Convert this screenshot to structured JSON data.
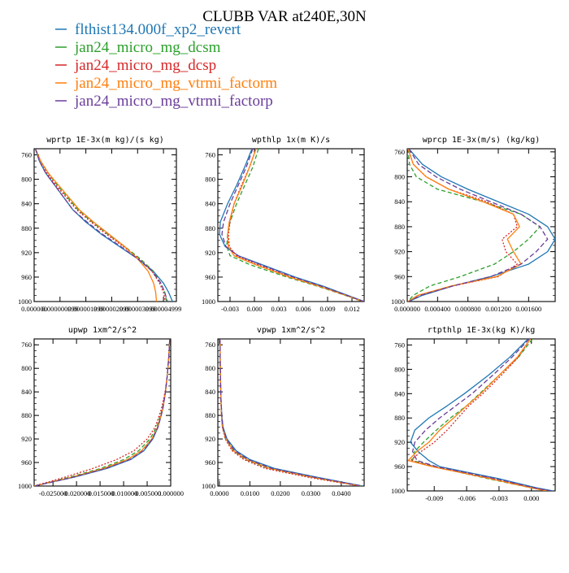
{
  "figure": {
    "title": "CLUBB VAR at240E,30N",
    "legend": [
      {
        "label": "flthist134.000f_xp2_revert",
        "color": "#1f77b4"
      },
      {
        "label": "jan24_micro_mg_dcsm",
        "color": "#2ca02c"
      },
      {
        "label": "jan24_micro_mg_dcsp",
        "color": "#d62728"
      },
      {
        "label": "jan24_micro_mg_vtrmi_factorm",
        "color": "#ff7f0e"
      },
      {
        "label": "jan24_micro_mg_vtrmi_factorp",
        "color": "#6a3d9a"
      }
    ]
  },
  "chart_data": [
    {
      "type": "line",
      "title": "wprtp  1E-3x(m kg)/(s kg)",
      "xlim": [
        0,
        5.5e-06
      ],
      "ylim": [
        1000,
        750
      ],
      "xticks": [
        0,
        1e-06,
        2e-06,
        3e-06,
        4e-06,
        5e-06
      ],
      "xtick_labels": [
        "0.000000",
        "0.000000999",
        "0.000001999",
        "0.000002999",
        "0.000003999",
        "0.000004999"
      ],
      "yticks": [
        760,
        800,
        840,
        880,
        920,
        960,
        1000
      ],
      "pressure": [
        750,
        770,
        790,
        810,
        830,
        850,
        870,
        890,
        910,
        930,
        950,
        970,
        985,
        995,
        1000
      ],
      "series": [
        {
          "name": "flthist134.000f_xp2_revert",
          "color": "#1f77b4",
          "dash": "",
          "x": [
            5e-08,
            2e-07,
            4.5e-07,
            8e-07,
            1.15e-06,
            1.5e-06,
            2e-06,
            2.6e-06,
            3.3e-06,
            4e-06,
            4.6e-06,
            5e-06,
            5.2e-06,
            5.3e-06,
            5.35e-06
          ]
        },
        {
          "name": "jan24_micro_mg_dcsm",
          "color": "#2ca02c",
          "dash": "5,3",
          "x": [
            5e-08,
            2.5e-07,
            5.5e-07,
            9e-07,
            1.3e-06,
            1.7e-06,
            2.25e-06,
            2.85e-06,
            3.5e-06,
            4.1e-06,
            4.6e-06,
            4.9e-06,
            5.05e-06,
            5.1e-06,
            5.12e-06
          ]
        },
        {
          "name": "jan24_micro_mg_dcsp",
          "color": "#d62728",
          "dash": "2,2",
          "x": [
            5e-08,
            2.5e-07,
            5e-07,
            8.5e-07,
            1.25e-06,
            1.65e-06,
            2.2e-06,
            2.8e-06,
            3.45e-06,
            4.05e-06,
            4.55e-06,
            4.85e-06,
            5e-06,
            5.05e-06,
            5.07e-06
          ]
        },
        {
          "name": "jan24_micro_mg_vtrmi_factorm",
          "color": "#ff7f0e",
          "dash": "",
          "x": [
            5e-08,
            2.5e-07,
            5.5e-07,
            9.5e-07,
            1.35e-06,
            1.75e-06,
            2.3e-06,
            2.9e-06,
            3.5e-06,
            4e-06,
            4.4e-06,
            4.62e-06,
            4.7e-06,
            4.72e-06,
            4.73e-06
          ]
        },
        {
          "name": "jan24_micro_mg_vtrmi_factorp",
          "color": "#6a3d9a",
          "dash": "6,3",
          "x": [
            5e-08,
            2e-07,
            4.5e-07,
            8e-07,
            1.15e-06,
            1.5e-06,
            2.05e-06,
            2.65e-06,
            3.35e-06,
            4e-06,
            4.55e-06,
            4.9e-06,
            5.05e-06,
            5.12e-06,
            5.15e-06
          ]
        }
      ]
    },
    {
      "type": "line",
      "title": "wpthlp  1x(m K)/s",
      "xlim": [
        -0.0045,
        0.0135
      ],
      "ylim": [
        1000,
        750
      ],
      "xticks": [
        -0.003,
        0.0,
        0.003,
        0.006,
        0.009,
        0.012
      ],
      "xtick_labels": [
        "-0.003",
        "0.000",
        "0.003",
        "0.006",
        "0.009",
        "0.012"
      ],
      "yticks": [
        760,
        800,
        840,
        880,
        920,
        960,
        1000
      ],
      "pressure": [
        750,
        780,
        810,
        840,
        870,
        890,
        910,
        925,
        940,
        960,
        975,
        990,
        1000
      ],
      "series": [
        {
          "name": "flthist134.000f_xp2_revert",
          "color": "#1f77b4",
          "dash": "",
          "x": [
            -0.0003,
            -0.0012,
            -0.0022,
            -0.0033,
            -0.0042,
            -0.0043,
            -0.0036,
            -0.002,
            0.001,
            0.005,
            0.0085,
            0.0115,
            0.0135
          ]
        },
        {
          "name": "jan24_micro_mg_dcsm",
          "color": "#2ca02c",
          "dash": "5,3",
          "x": [
            0.0005,
            -0.0002,
            -0.0012,
            -0.0022,
            -0.003,
            -0.0033,
            -0.0034,
            -0.003,
            -0.0005,
            0.004,
            0.0078,
            0.0112,
            0.0133
          ]
        },
        {
          "name": "jan24_micro_mg_dcsp",
          "color": "#d62728",
          "dash": "2,2",
          "x": [
            0.0002,
            -0.0006,
            -0.0016,
            -0.0025,
            -0.003,
            -0.0032,
            -0.0031,
            -0.0022,
            0.0005,
            0.0045,
            0.008,
            0.0113,
            0.0134
          ]
        },
        {
          "name": "jan24_micro_mg_vtrmi_factorm",
          "color": "#ff7f0e",
          "dash": "",
          "x": [
            0.0002,
            -0.0006,
            -0.0015,
            -0.0025,
            -0.0031,
            -0.0033,
            -0.0032,
            -0.0025,
            0.0002,
            0.0043,
            0.008,
            0.0113,
            0.0134
          ]
        },
        {
          "name": "jan24_micro_mg_vtrmi_factorp",
          "color": "#6a3d9a",
          "dash": "6,3",
          "x": [
            -0.0002,
            -0.001,
            -0.002,
            -0.003,
            -0.0038,
            -0.004,
            -0.0035,
            -0.002,
            0.0008,
            0.0048,
            0.0083,
            0.0114,
            0.0135
          ]
        }
      ]
    },
    {
      "type": "line",
      "title": "wprcp  1E-3x(m/s) (kg/kg)",
      "xlim": [
        0,
        0.00195
      ],
      "ylim": [
        1000,
        755
      ],
      "xticks": [
        0,
        0.0004,
        0.0008,
        0.0012,
        0.0016
      ],
      "xtick_labels": [
        "0.000000",
        "0.000400",
        "0.000800",
        "0.001200",
        "0.001600"
      ],
      "yticks": [
        760,
        800,
        840,
        880,
        920,
        960,
        1000
      ],
      "pressure": [
        755,
        780,
        800,
        820,
        840,
        860,
        880,
        900,
        920,
        940,
        960,
        975,
        990,
        1000
      ],
      "series": [
        {
          "name": "flthist134.000f_xp2_revert",
          "color": "#1f77b4",
          "dash": "",
          "x": [
            2e-05,
            0.0002,
            0.00045,
            0.0008,
            0.0012,
            0.0016,
            0.00185,
            0.00195,
            0.00185,
            0.0016,
            0.0011,
            0.0006,
            0.0002,
            2e-05
          ]
        },
        {
          "name": "jan24_micro_mg_dcsm",
          "color": "#2ca02c",
          "dash": "5,3",
          "x": [
            1e-05,
            3e-05,
            0.00012,
            0.0004,
            0.001,
            0.0015,
            0.00175,
            0.0016,
            0.0014,
            0.00115,
            0.0007,
            0.0003,
            8e-05,
            1e-05
          ]
        },
        {
          "name": "jan24_micro_mg_dcsp",
          "color": "#d62728",
          "dash": "2,2",
          "x": [
            1e-05,
            8e-05,
            0.00025,
            0.00055,
            0.00105,
            0.0014,
            0.00145,
            0.00125,
            0.0013,
            0.00145,
            0.0012,
            0.0006,
            0.00015,
            1e-05
          ]
        },
        {
          "name": "jan24_micro_mg_vtrmi_factorm",
          "color": "#ff7f0e",
          "dash": "",
          "x": [
            1e-05,
            8e-05,
            0.00025,
            0.00055,
            0.001,
            0.0014,
            0.00148,
            0.00132,
            0.0014,
            0.0015,
            0.00118,
            0.00058,
            0.00014,
            1e-05
          ]
        },
        {
          "name": "jan24_micro_mg_vtrmi_factorp",
          "color": "#6a3d9a",
          "dash": "6,3",
          "x": [
            2e-05,
            0.00015,
            0.00038,
            0.0007,
            0.0011,
            0.0015,
            0.00175,
            0.00185,
            0.0017,
            0.0015,
            0.0011,
            0.0006,
            0.00018,
            2e-05
          ]
        }
      ]
    },
    {
      "type": "line",
      "title": "upwp  1xm^2/s^2",
      "xlim": [
        -0.029,
        0.0
      ],
      "ylim": [
        1000,
        750
      ],
      "xticks": [
        -0.025,
        -0.02,
        -0.015,
        -0.01,
        -0.005,
        0.0
      ],
      "xtick_labels": [
        "-0.025000",
        "-0.020000",
        "-0.015000",
        "-0.010000",
        "-0.005000",
        "0.000000"
      ],
      "yticks": [
        760,
        800,
        840,
        880,
        920,
        960,
        1000
      ],
      "pressure": [
        750,
        780,
        810,
        840,
        870,
        900,
        920,
        940,
        955,
        970,
        985,
        1000
      ],
      "series": [
        {
          "name": "flthist134.000f_xp2_revert",
          "color": "#1f77b4",
          "dash": "",
          "x": [
            -0.0002,
            -0.0004,
            -0.0007,
            -0.0011,
            -0.0017,
            -0.0027,
            -0.0038,
            -0.0057,
            -0.0085,
            -0.0135,
            -0.0205,
            -0.029
          ]
        },
        {
          "name": "jan24_micro_mg_dcsm",
          "color": "#2ca02c",
          "dash": "5,3",
          "x": [
            -0.0002,
            -0.0004,
            -0.0007,
            -0.0011,
            -0.0018,
            -0.003,
            -0.0044,
            -0.0068,
            -0.01,
            -0.0148,
            -0.0215,
            -0.029
          ]
        },
        {
          "name": "jan24_micro_mg_dcsp",
          "color": "#d62728",
          "dash": "2,2",
          "x": [
            -0.0002,
            -0.0004,
            -0.0007,
            -0.0012,
            -0.002,
            -0.0033,
            -0.005,
            -0.0078,
            -0.0115,
            -0.0165,
            -0.0225,
            -0.029
          ]
        },
        {
          "name": "jan24_micro_mg_vtrmi_factorm",
          "color": "#ff7f0e",
          "dash": "",
          "x": [
            -0.0002,
            -0.0004,
            -0.0007,
            -0.0011,
            -0.0017,
            -0.0028,
            -0.004,
            -0.0062,
            -0.0092,
            -0.0142,
            -0.021,
            -0.029
          ]
        },
        {
          "name": "jan24_micro_mg_vtrmi_factorp",
          "color": "#6a3d9a",
          "dash": "6,3",
          "x": [
            -0.0002,
            -0.0004,
            -0.0007,
            -0.0011,
            -0.0017,
            -0.0027,
            -0.0039,
            -0.0058,
            -0.0087,
            -0.0137,
            -0.0207,
            -0.029
          ]
        }
      ]
    },
    {
      "type": "line",
      "title": "vpwp  1xm^2/s^2",
      "xlim": [
        -0.0005,
        0.0475
      ],
      "ylim": [
        1000,
        750
      ],
      "xticks": [
        0.0,
        0.01,
        0.02,
        0.03,
        0.04
      ],
      "xtick_labels": [
        "0.0000",
        "0.0100",
        "0.0200",
        "0.0300",
        "0.0400"
      ],
      "yticks": [
        760,
        800,
        840,
        880,
        920,
        960,
        1000
      ],
      "pressure": [
        750,
        800,
        850,
        880,
        900,
        920,
        940,
        955,
        970,
        985,
        1000
      ],
      "series": [
        {
          "name": "flthist134.000f_xp2_revert",
          "color": "#1f77b4",
          "dash": "",
          "x": [
            0.0002,
            0.0003,
            0.0005,
            0.0008,
            0.0012,
            0.0025,
            0.0055,
            0.01,
            0.018,
            0.032,
            0.047
          ]
        },
        {
          "name": "jan24_micro_mg_dcsm",
          "color": "#2ca02c",
          "dash": "5,3",
          "x": [
            0.0002,
            0.0003,
            0.0005,
            0.0007,
            0.001,
            0.002,
            0.0045,
            0.0085,
            0.016,
            0.03,
            0.0465
          ]
        },
        {
          "name": "jan24_micro_mg_dcsp",
          "color": "#d62728",
          "dash": "2,2",
          "x": [
            0.0002,
            0.0003,
            0.0005,
            0.0007,
            0.001,
            0.0019,
            0.0042,
            0.008,
            0.015,
            0.029,
            0.046
          ]
        },
        {
          "name": "jan24_micro_mg_vtrmi_factorm",
          "color": "#ff7f0e",
          "dash": "",
          "x": [
            0.0002,
            0.0003,
            0.0005,
            0.0007,
            0.001,
            0.0021,
            0.0047,
            0.009,
            0.0165,
            0.0305,
            0.0463
          ]
        },
        {
          "name": "jan24_micro_mg_vtrmi_factorp",
          "color": "#6a3d9a",
          "dash": "6,3",
          "x": [
            0.0002,
            0.0003,
            0.0005,
            0.0008,
            0.0011,
            0.0023,
            0.005,
            0.0095,
            0.0172,
            0.0312,
            0.0468
          ]
        }
      ]
    },
    {
      "type": "line",
      "title": "rtpthlp  1E-3x(kg K)/kg",
      "xlim": [
        -0.0115,
        0.0022
      ],
      "ylim": [
        1000,
        750
      ],
      "xticks": [
        -0.009,
        -0.006,
        -0.003,
        0.0
      ],
      "xtick_labels": [
        "-0.009",
        "-0.006",
        "-0.003",
        "0.000"
      ],
      "yticks": [
        760,
        800,
        840,
        880,
        920,
        960,
        1000
      ],
      "pressure": [
        750,
        780,
        810,
        840,
        860,
        880,
        900,
        920,
        935,
        950,
        960,
        980,
        995,
        1000
      ],
      "series": [
        {
          "name": "flthist134.000f_xp2_revert",
          "color": "#1f77b4",
          "dash": "",
          "x": [
            -0.0003,
            -0.002,
            -0.004,
            -0.0062,
            -0.0078,
            -0.0095,
            -0.0108,
            -0.0112,
            -0.0105,
            -0.0095,
            -0.0085,
            -0.003,
            0.0005,
            0.002
          ]
        },
        {
          "name": "jan24_micro_mg_dcsm",
          "color": "#2ca02c",
          "dash": "5,3",
          "x": [
            0.0001,
            -0.0012,
            -0.003,
            -0.0048,
            -0.006,
            -0.0075,
            -0.0088,
            -0.01,
            -0.0108,
            -0.011,
            -0.009,
            -0.004,
            0.0,
            0.0015
          ]
        },
        {
          "name": "jan24_micro_mg_dcsp",
          "color": "#d62728",
          "dash": "2,2",
          "x": [
            -0.0001,
            -0.0012,
            -0.0028,
            -0.0045,
            -0.0058,
            -0.0068,
            -0.0078,
            -0.009,
            -0.0102,
            -0.0112,
            -0.009,
            -0.0035,
            0.0002,
            0.0016
          ]
        },
        {
          "name": "jan24_micro_mg_vtrmi_factorm",
          "color": "#ff7f0e",
          "dash": "",
          "x": [
            -0.0001,
            -0.0013,
            -0.003,
            -0.0047,
            -0.006,
            -0.0072,
            -0.0085,
            -0.0095,
            -0.0106,
            -0.0114,
            -0.0092,
            -0.0038,
            0.0,
            0.0014
          ]
        },
        {
          "name": "jan24_micro_mg_vtrmi_factorp",
          "color": "#6a3d9a",
          "dash": "6,3",
          "x": [
            -0.0002,
            -0.0018,
            -0.0036,
            -0.0055,
            -0.007,
            -0.0085,
            -0.0098,
            -0.0108,
            -0.011,
            -0.0106,
            -0.0088,
            -0.0033,
            0.0003,
            0.0018
          ]
        }
      ]
    }
  ]
}
